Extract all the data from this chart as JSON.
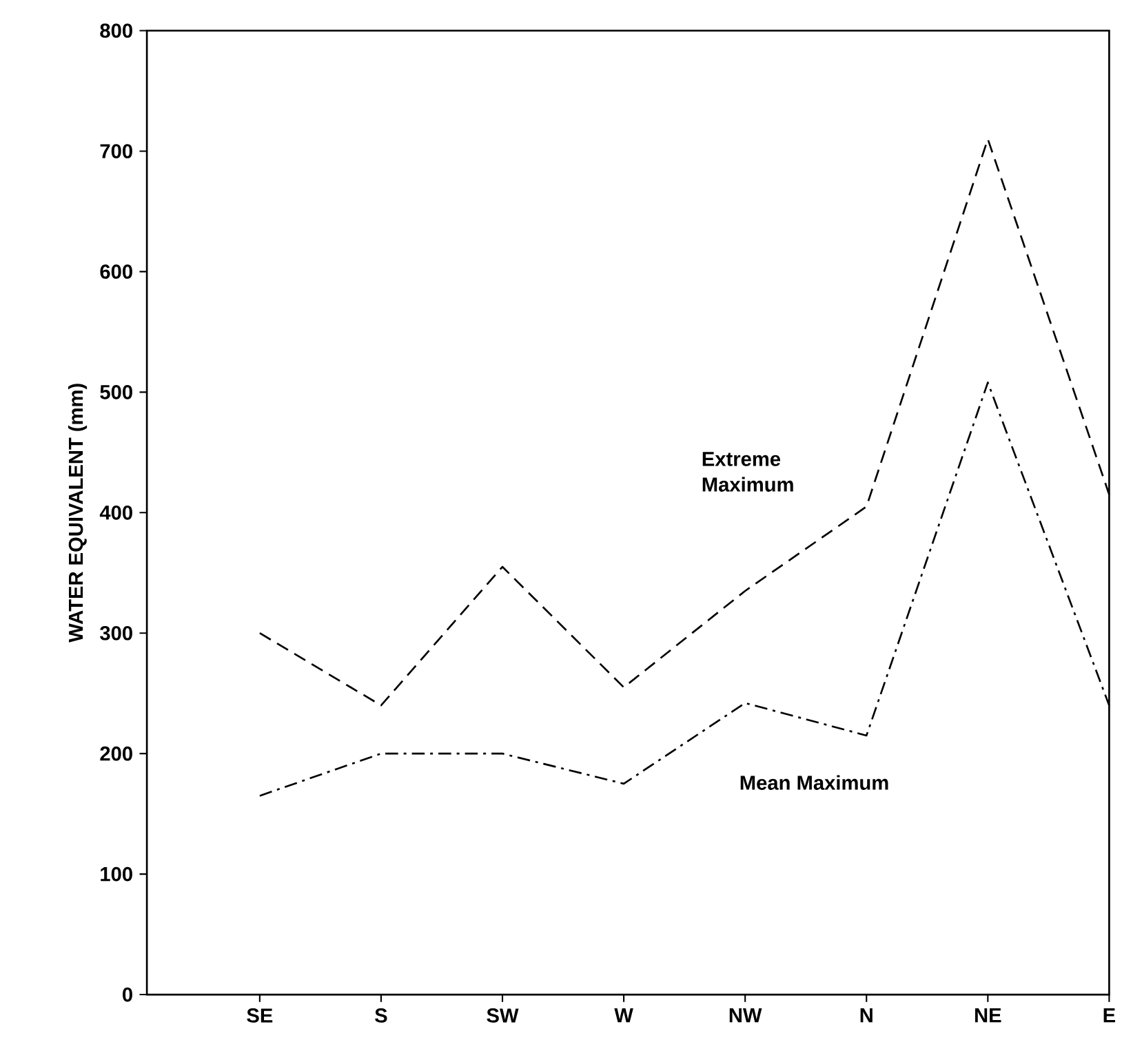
{
  "chart_data": {
    "type": "line",
    "ylabel": "WATER EQUIVALENT (mm)",
    "categories": [
      "SE",
      "S",
      "SW",
      "W",
      "NW",
      "N",
      "NE",
      "E"
    ],
    "series": [
      {
        "name": "Extreme Maximum",
        "color": "#000000",
        "line_style": "dashed",
        "values": [
          300,
          240,
          355,
          255,
          335,
          405,
          710,
          415
        ]
      },
      {
        "name": "Mean Maximum",
        "color": "#000000",
        "line_style": "dashdot",
        "values": [
          165,
          200,
          200,
          175,
          242,
          215,
          508,
          240
        ]
      }
    ],
    "ylim": [
      0,
      800
    ],
    "yticks": [
      0,
      100,
      200,
      300,
      400,
      500,
      600,
      700,
      800
    ],
    "grid": false,
    "legend": false,
    "marker": "none"
  }
}
